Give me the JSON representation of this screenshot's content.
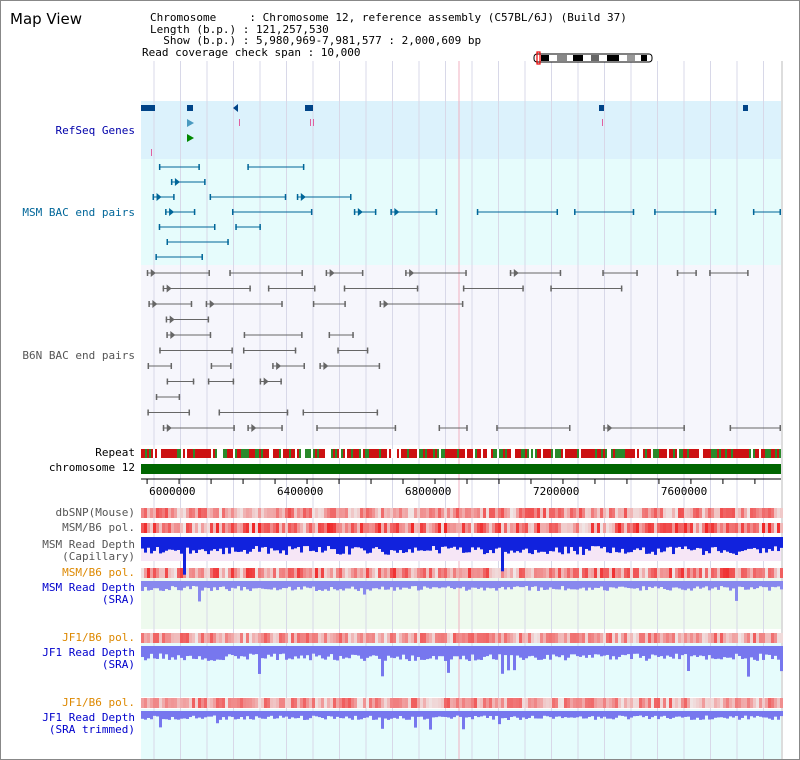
{
  "title": "Map View",
  "info": {
    "chromosome_line": "Chromosome     : Chromosome 12, reference assembly (C57BL/6J) (Build 37)",
    "length_line": "Length (b.p.) : 121,257,530",
    "show_line": "  Show (b.p.) : 5,980,969-7,981,577 : 2,000,609 bp",
    "coverage_line": "Read coverage check span : 10,000"
  },
  "tracks": {
    "refseq": "RefSeq Genes",
    "msm_bac": "MSM BAC end pairs",
    "b6n_bac": "B6N BAC end pairs",
    "repeat": "Repeat",
    "chromosome": "chromosome 12",
    "dbsnp": "dbSNP(Mouse)",
    "msm_b6_pol_1": "MSM/B6 pol.",
    "msm_depth_cap_1": "MSM Read Depth",
    "msm_depth_cap_2": "(Capillary)",
    "msm_b6_pol_2": "MSM/B6 pol.",
    "msm_depth_sra_1": "MSM Read Depth",
    "msm_depth_sra_2": "(SRA)",
    "jf1_b6_pol_1": "JF1/B6 pol.",
    "jf1_depth_sra_1": "JF1 Read Depth",
    "jf1_depth_sra_2": "(SRA)",
    "jf1_b6_pol_2": "JF1/B6 pol.",
    "jf1_depth_trim_1": "JF1 Read Depth",
    "jf1_depth_trim_2": "(SRA trimmed)"
  },
  "axis": {
    "ticks": [
      "6000000",
      "6400000",
      "6800000",
      "7200000",
      "7600000"
    ],
    "range_bp": [
      5980969,
      7981577
    ]
  },
  "colors": {
    "refseq": "#0000aa",
    "msm_bac": "#006699",
    "b6n_bac": "#555555",
    "pol_orange": "#dd8800",
    "depth_blue": "#0000cc",
    "chrom_green": "#006600"
  }
}
